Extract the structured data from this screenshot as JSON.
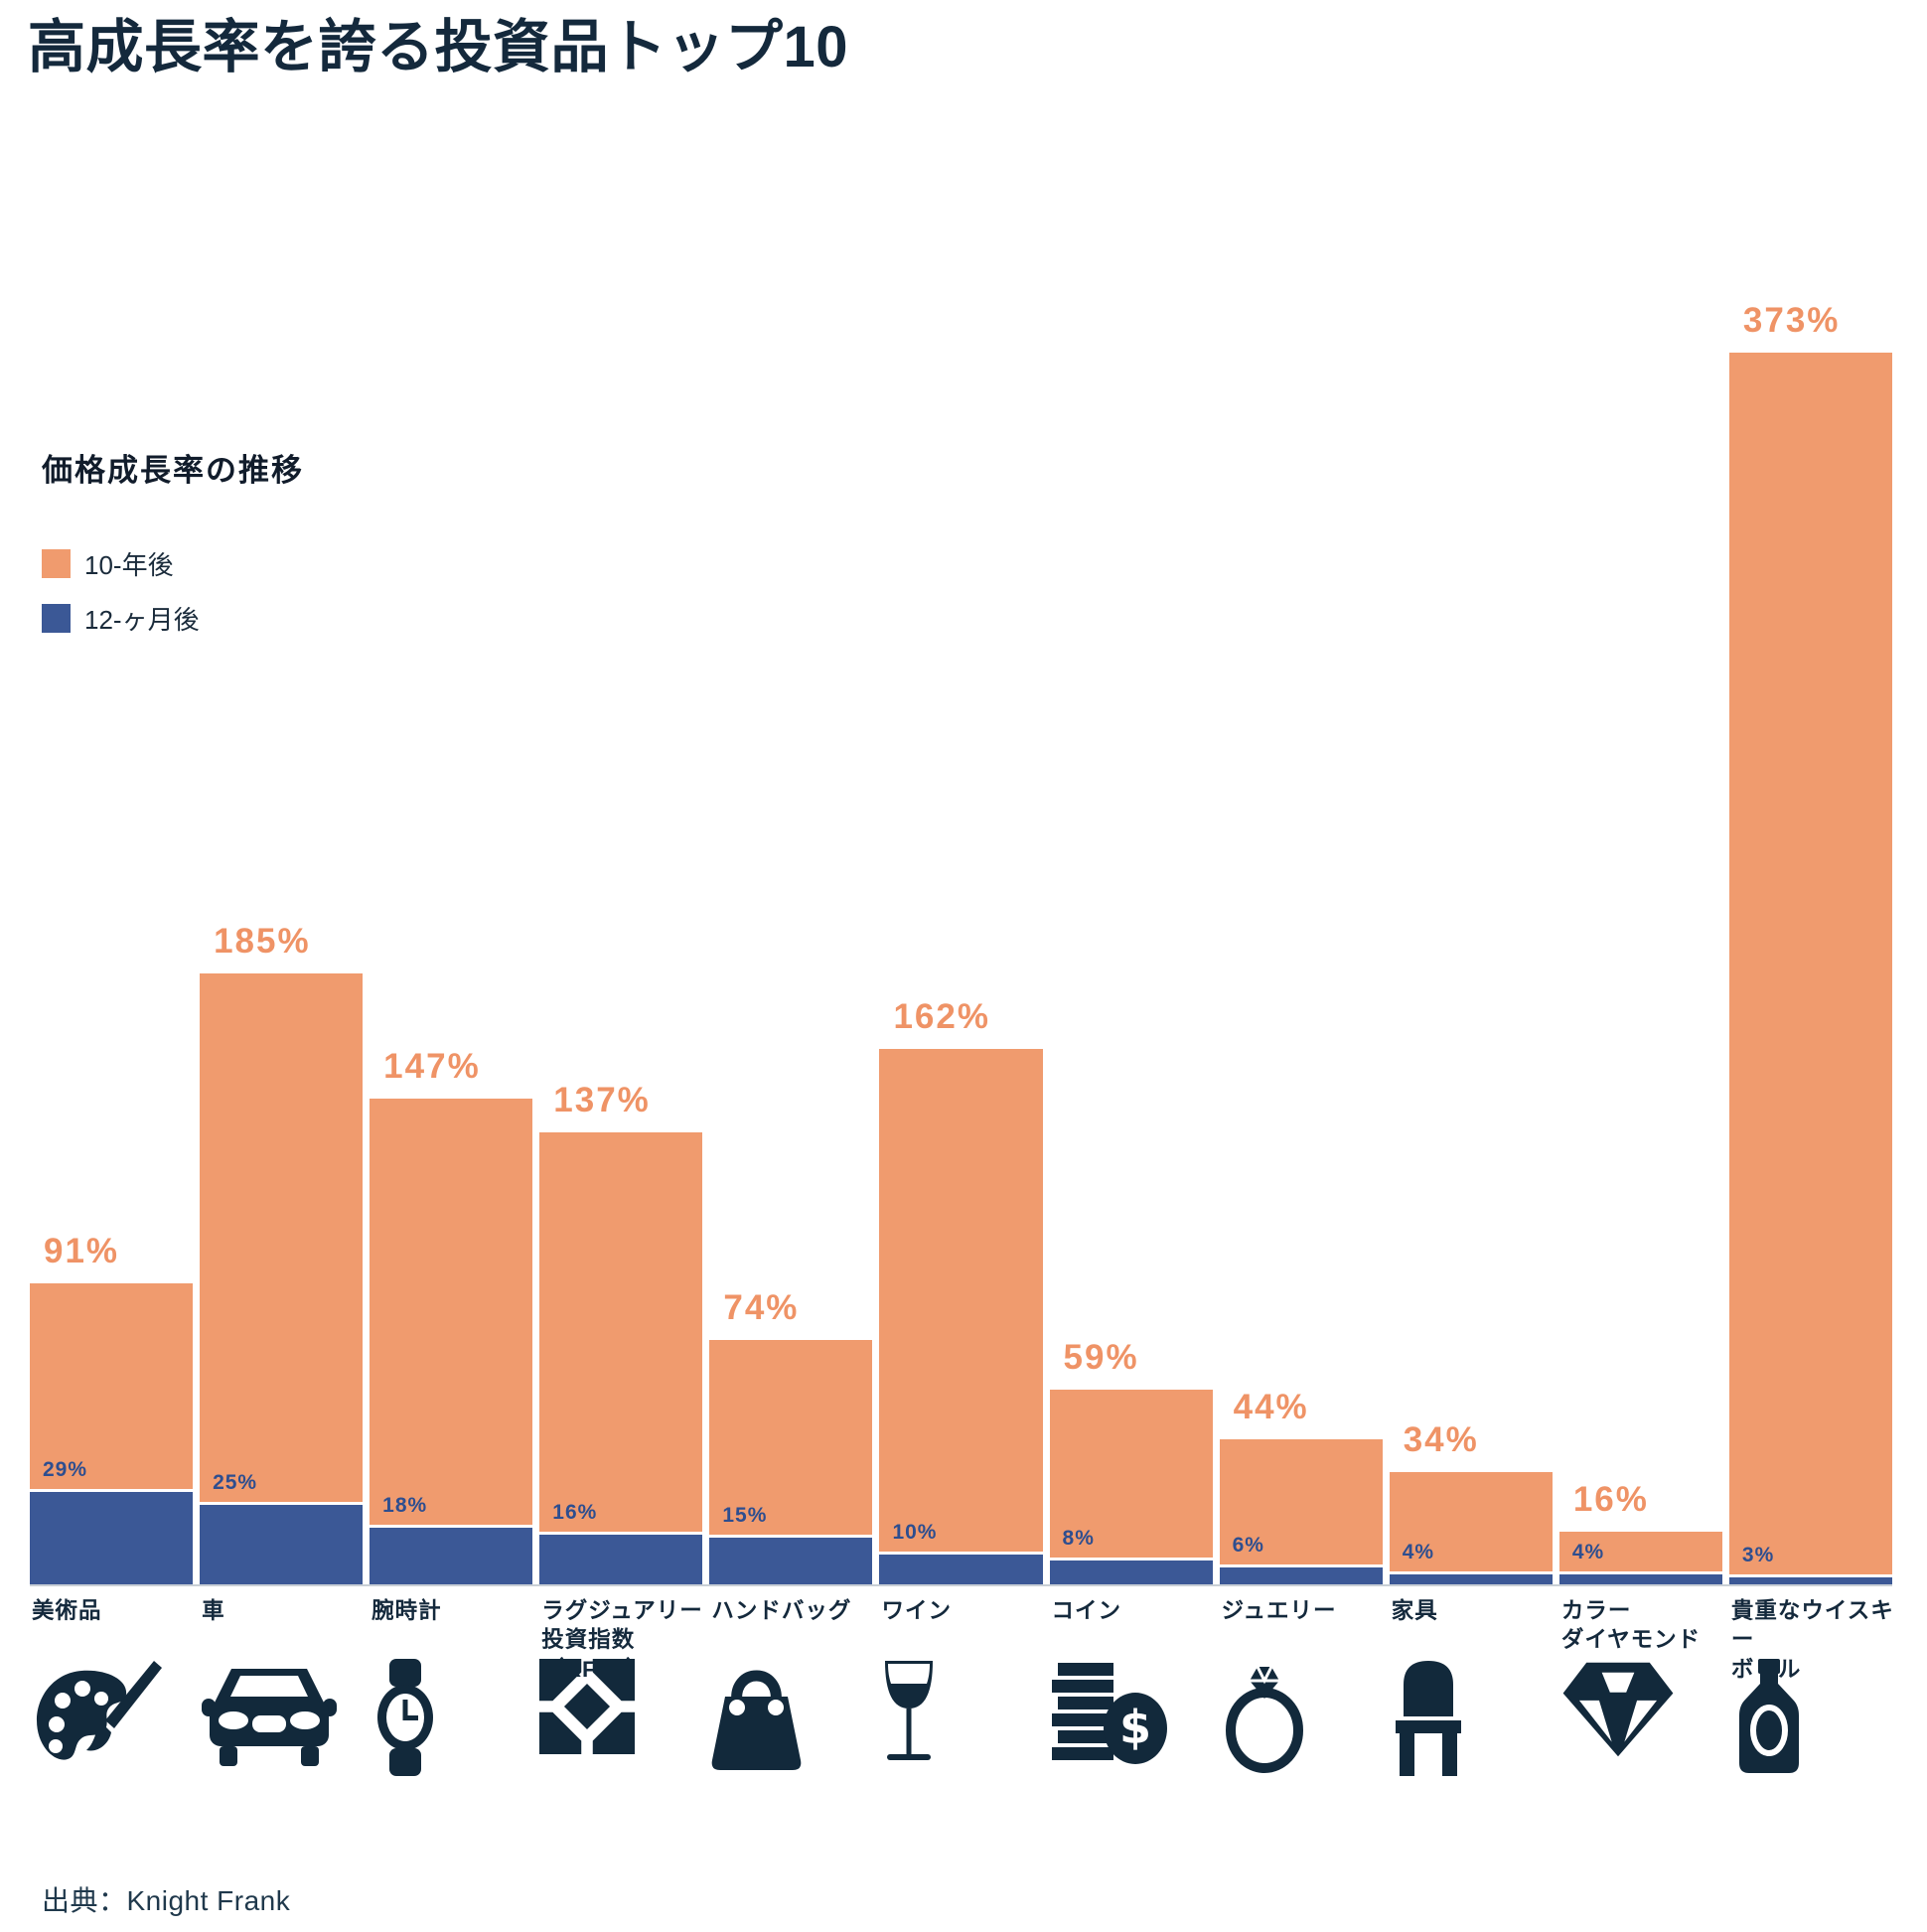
{
  "title": "高成長率を誇る投資品トップ10",
  "legend": {
    "title": "価格成長率の推移",
    "items": [
      {
        "label": "10-年後",
        "color": "#F09B6E"
      },
      {
        "label": "12-ヶ月後",
        "color": "#3B5896"
      }
    ]
  },
  "source": "出典：Knight Frank",
  "colors": {
    "bar_10yr": "#F09B6E",
    "bar_12mo": "#3B5896",
    "value_label_10yr": "#EF9366",
    "value_label_12mo": "#2E4E8F",
    "text_navy": "#14293C",
    "icon_navy": "#12293B",
    "baseline_gray": "#C9CFD6"
  },
  "chart_data": {
    "type": "bar",
    "title": "高成長率を誇る投資品トップ10",
    "legend_title": "価格成長率の推移",
    "legend_position": "upper-left",
    "grid": false,
    "unit": "%",
    "ylim": [
      0,
      373
    ],
    "categories": [
      "美術品",
      "車",
      "腕時計",
      "ラグジュアリー\n投資指数（KFLII）",
      "ハンドバッグ",
      "ワイン",
      "コイン",
      "ジュエリー",
      "家具",
      "カラー\nダイヤモンド",
      "貴重なウイスキー\nボトル"
    ],
    "icons": [
      "palette-icon",
      "car-icon",
      "watch-icon",
      "kflii-icon",
      "handbag-icon",
      "wine-glass-icon",
      "coins-icon",
      "ring-icon",
      "chair-icon",
      "diamond-icon",
      "whisky-bottle-icon"
    ],
    "series": [
      {
        "name": "10-年後",
        "color": "#F09B6E",
        "values": [
          91,
          185,
          147,
          137,
          74,
          162,
          59,
          44,
          34,
          16,
          373
        ]
      },
      {
        "name": "12-ヶ月後",
        "color": "#3B5896",
        "values": [
          29,
          25,
          18,
          16,
          15,
          10,
          8,
          6,
          4,
          4,
          3
        ]
      }
    ],
    "source": "出典：Knight Frank"
  }
}
